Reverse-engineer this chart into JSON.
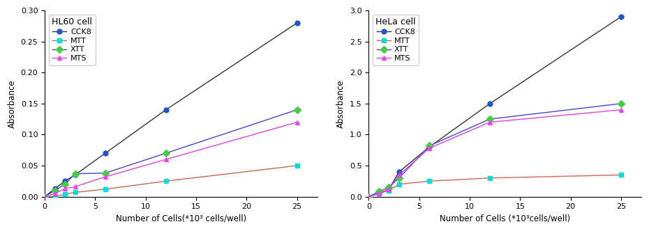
{
  "hl60": {
    "title": "HL60 cell",
    "x": [
      0,
      1,
      2,
      3,
      6,
      12,
      25
    ],
    "CCK8": [
      0,
      0.013,
      0.025,
      0.035,
      0.07,
      0.14,
      0.28
    ],
    "MTT": [
      0,
      0.0,
      0.004,
      0.007,
      0.012,
      0.025,
      0.05
    ],
    "XTT": [
      0,
      0.01,
      0.02,
      0.037,
      0.038,
      0.07,
      0.14
    ],
    "MTS": [
      0,
      0.005,
      0.013,
      0.016,
      0.032,
      0.06,
      0.12
    ],
    "ylim": [
      0,
      0.3
    ],
    "yticks": [
      0.0,
      0.05,
      0.1,
      0.15,
      0.2,
      0.25,
      0.3
    ],
    "xlabel": "Number of Cells(*10³ cells/well)"
  },
  "hela": {
    "title": "HeLa cell",
    "x": [
      0,
      1,
      2,
      3,
      6,
      12,
      25
    ],
    "CCK8": [
      0,
      0.05,
      0.12,
      0.4,
      0.8,
      1.5,
      2.9
    ],
    "MTT": [
      0,
      0.05,
      0.1,
      0.2,
      0.25,
      0.3,
      0.35
    ],
    "XTT": [
      0,
      0.08,
      0.15,
      0.3,
      0.82,
      1.25,
      1.5
    ],
    "MTS": [
      0,
      0.05,
      0.12,
      0.35,
      0.78,
      1.2,
      1.4
    ],
    "ylim": [
      0,
      3.0
    ],
    "yticks": [
      0.0,
      0.5,
      1.0,
      1.5,
      2.0,
      2.5,
      3.0
    ],
    "xlabel": "Number of Cells (*10³cells/well)"
  },
  "line_colors": {
    "CCK8": "#333333",
    "MTT": "#cc6655",
    "XTT": "#4444cc",
    "MTS": "#dd44dd"
  },
  "marker_colors": {
    "CCK8": "#2255cc",
    "MTT": "#00dddd",
    "XTT": "#44cc44",
    "MTS": "#ee44ee"
  },
  "markers": {
    "CCK8": "o",
    "MTT": "s",
    "XTT": "D",
    "MTS": "^"
  },
  "ylabel": "Absorbance",
  "assay_order": [
    "CCK8",
    "MTT",
    "XTT",
    "MTS"
  ]
}
